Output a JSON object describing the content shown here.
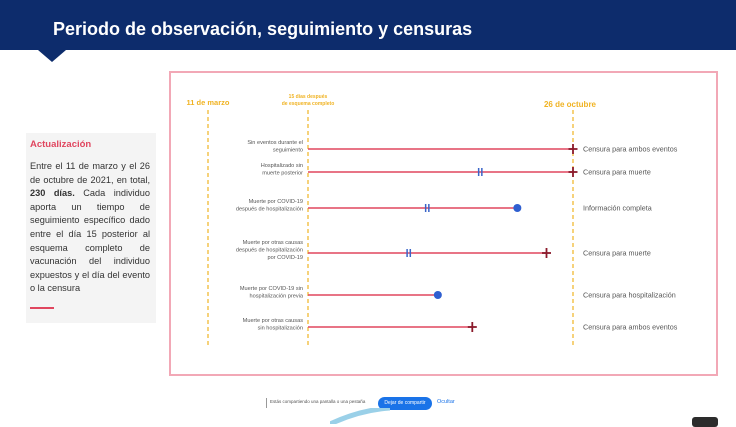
{
  "header": {
    "title": "Periodo de observación, seguimiento y censuras"
  },
  "sidebar": {
    "title": "Actualización",
    "text_parts": {
      "p1": "Entre el 11 de marzo y el 26 de octubre de 2021, en total, ",
      "bold": "230 días.",
      "p2": " Cada individuo aporta un tiempo de seguimiento específico dado entre el día 15 posterior al esquema completo de vacunación del individuo expuestos y el día del evento o la censura"
    }
  },
  "timeline": {
    "markers": {
      "start": "11 de marzo",
      "mid_line1": "15 días después",
      "mid_line2": "de esquema completo",
      "end": "26 de octubre"
    },
    "rows": [
      {
        "label_lines": [
          "Sin eventos durante el",
          "seguimiento"
        ],
        "outcome": "Censura para ambos eventos",
        "hosp": null,
        "end_pct": 1.0,
        "end_type": "cross"
      },
      {
        "label_lines": [
          "Hospitalizado sin",
          "muerte posterior"
        ],
        "outcome": "Censura para muerte",
        "hosp": 0.65,
        "end_pct": 1.0,
        "end_type": "cross"
      },
      {
        "label_lines": [
          "Muerte por COVID-19",
          "después de hospitalización"
        ],
        "outcome": "Información completa",
        "hosp": 0.45,
        "end_pct": 0.79,
        "end_type": "dot"
      },
      {
        "label_lines": [
          "Muerte por otras causas",
          "después de hospitalización",
          "por COVID-19"
        ],
        "outcome": "Censura para muerte",
        "hosp": 0.38,
        "end_pct": 0.9,
        "end_type": "cross"
      },
      {
        "label_lines": [
          "Muerte por COVID-19 sin",
          "hospitalización previa"
        ],
        "outcome": "Censura para hospitalización",
        "hosp": null,
        "end_pct": 0.49,
        "end_type": "dot"
      },
      {
        "label_lines": [
          "Muerte por otras causas",
          "sin hospitalización"
        ],
        "outcome": "Censura para ambos eventos",
        "hosp": null,
        "end_pct": 0.62,
        "end_type": "cross"
      }
    ]
  },
  "share_bar": {
    "text": "Estás compartiendo una pantalla o una pestaña",
    "stop_label": "Dejar de compartir",
    "hide_label": "Ocultar"
  },
  "colors": {
    "header_bg": "#0d2c6c",
    "accent_pink": "#e0465f",
    "marker_yellow": "#f0b323",
    "cross_red": "#8b1a2b",
    "hosp_blue": "#3a64c8",
    "dot_blue": "#2f5fd0"
  }
}
